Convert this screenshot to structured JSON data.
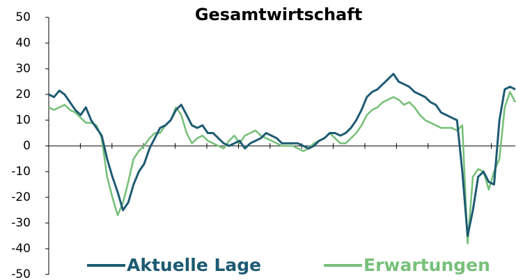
{
  "chart_data": {
    "type": "line",
    "title": "Gesamtwirtschaft",
    "categories": [
      null,
      null,
      null,
      null,
      null,
      null,
      null,
      null,
      null,
      null,
      null,
      null,
      null,
      null,
      null,
      null,
      null,
      null,
      null,
      null,
      null,
      null,
      null,
      null,
      null,
      null,
      null,
      null,
      null,
      null,
      null,
      null,
      null,
      null,
      null,
      null,
      null,
      null,
      null,
      null,
      null,
      null,
      null,
      null,
      null,
      null,
      null,
      null,
      null,
      null,
      null,
      null,
      null,
      null,
      null,
      null,
      null,
      null,
      null,
      null,
      null,
      null,
      null,
      null,
      null,
      null,
      null,
      null,
      null,
      null,
      null,
      null,
      null,
      null,
      null,
      null,
      null,
      null,
      null,
      null,
      null,
      null,
      null,
      null,
      null,
      null,
      null,
      null,
      null
    ],
    "series": [
      {
        "name": "Aktuelle Lage",
        "color": "#1d5a72",
        "values": [
          20,
          19,
          21.5,
          20,
          17,
          14,
          12,
          15,
          10,
          7,
          4,
          -5,
          -12,
          -18,
          -25,
          -22,
          -15,
          -10,
          -7,
          -1,
          3,
          7,
          8,
          10,
          14,
          16,
          12,
          8,
          7,
          8,
          5,
          5,
          3,
          1,
          0,
          1,
          2,
          -1,
          1,
          2,
          3,
          5,
          4,
          3,
          1,
          1,
          1,
          1,
          0,
          -1,
          0,
          2,
          3,
          5,
          5,
          4,
          5,
          7,
          10,
          14,
          19,
          21,
          22,
          24,
          26,
          28,
          25,
          24,
          23,
          21,
          20,
          19,
          17,
          16,
          13,
          12,
          11,
          10,
          -10,
          -35,
          -25,
          -12,
          -10,
          -14,
          -15,
          10,
          22,
          23,
          22
        ]
      },
      {
        "name": "Erwartungen",
        "color": "#78c07b",
        "values": [
          15,
          14,
          15,
          16,
          14,
          13,
          11,
          9,
          9,
          8,
          3,
          -12,
          -20,
          -27,
          -22,
          -14,
          -5,
          -2,
          0,
          3,
          5,
          5,
          8,
          10,
          15,
          12,
          5,
          1,
          3,
          4,
          2,
          1,
          0,
          -1,
          2,
          4,
          1,
          4,
          5,
          6,
          4,
          3,
          2,
          1,
          0,
          0,
          0,
          -1,
          -2,
          -1,
          1,
          2,
          3,
          5,
          3,
          1,
          1,
          3,
          5,
          8,
          12,
          14,
          15,
          17,
          18,
          19,
          18,
          16,
          17,
          15,
          12,
          10,
          9,
          8,
          7,
          7,
          7,
          6,
          8,
          -38,
          -12,
          -9,
          -10,
          -17,
          -10,
          -5,
          15,
          21,
          17
        ]
      }
    ],
    "ylim": [
      -50,
      50
    ],
    "yticks": [
      -50,
      -40,
      -30,
      -20,
      -10,
      0,
      10,
      20,
      30,
      40,
      50
    ],
    "legend": "bottom"
  }
}
